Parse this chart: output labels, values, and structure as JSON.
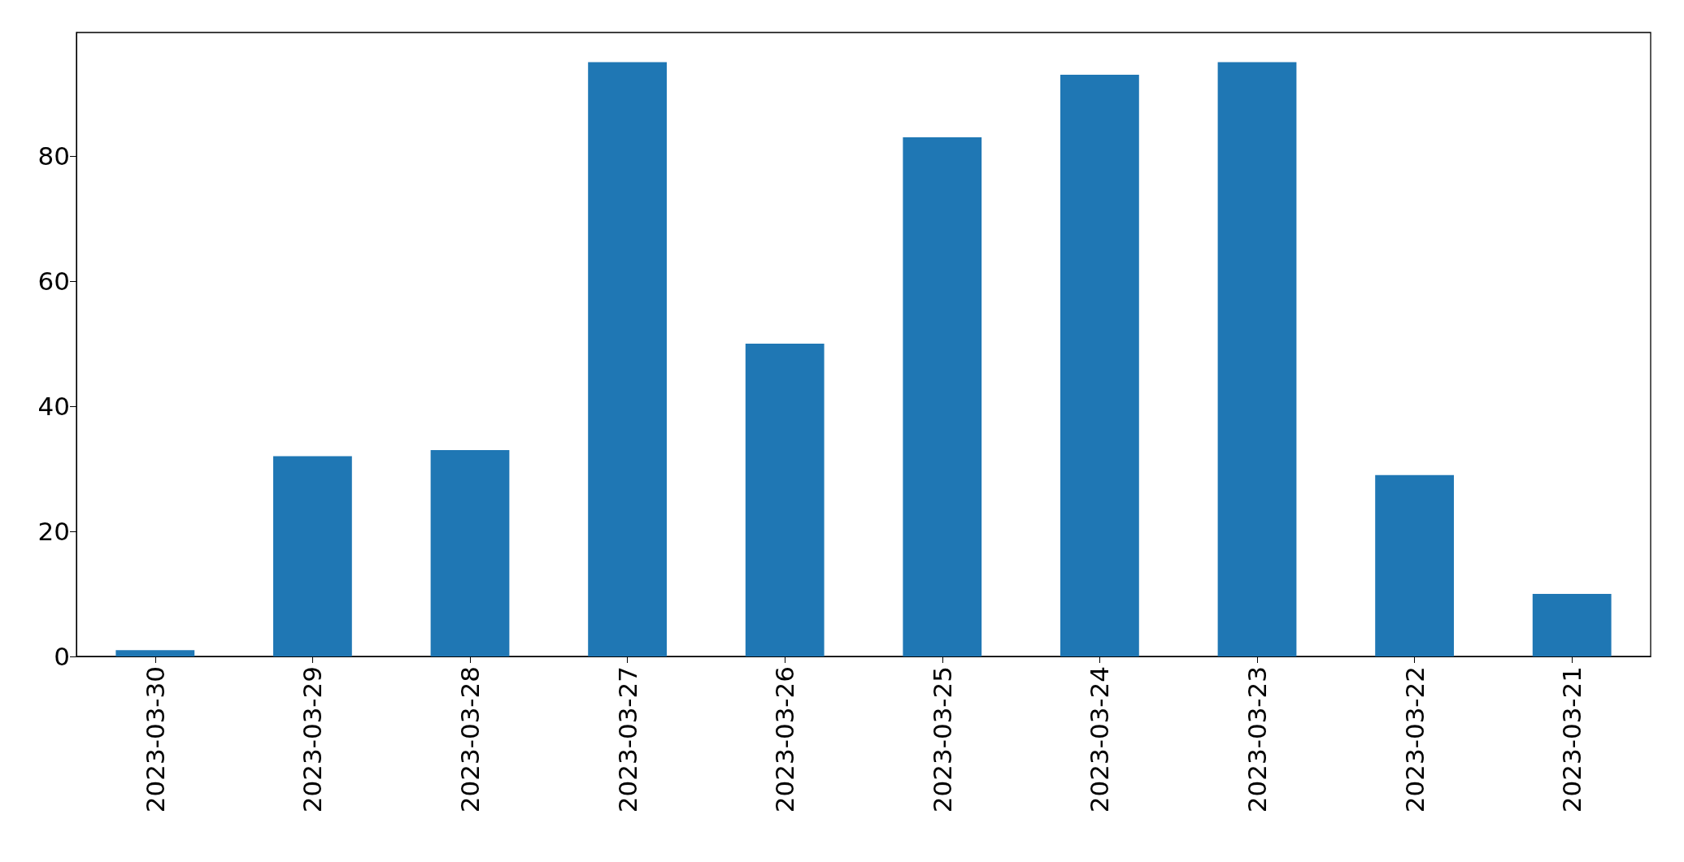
{
  "chart_data": {
    "type": "bar",
    "categories": [
      "2023-03-30",
      "2023-03-29",
      "2023-03-28",
      "2023-03-27",
      "2023-03-26",
      "2023-03-25",
      "2023-03-24",
      "2023-03-23",
      "2023-03-22",
      "2023-03-21"
    ],
    "values": [
      1,
      32,
      33,
      95,
      50,
      83,
      93,
      95,
      29,
      10
    ],
    "color": "#1f77b4",
    "ylim": [
      0,
      99.75
    ],
    "yticks": [
      0,
      20,
      40,
      60,
      80
    ],
    "grid": false
  }
}
